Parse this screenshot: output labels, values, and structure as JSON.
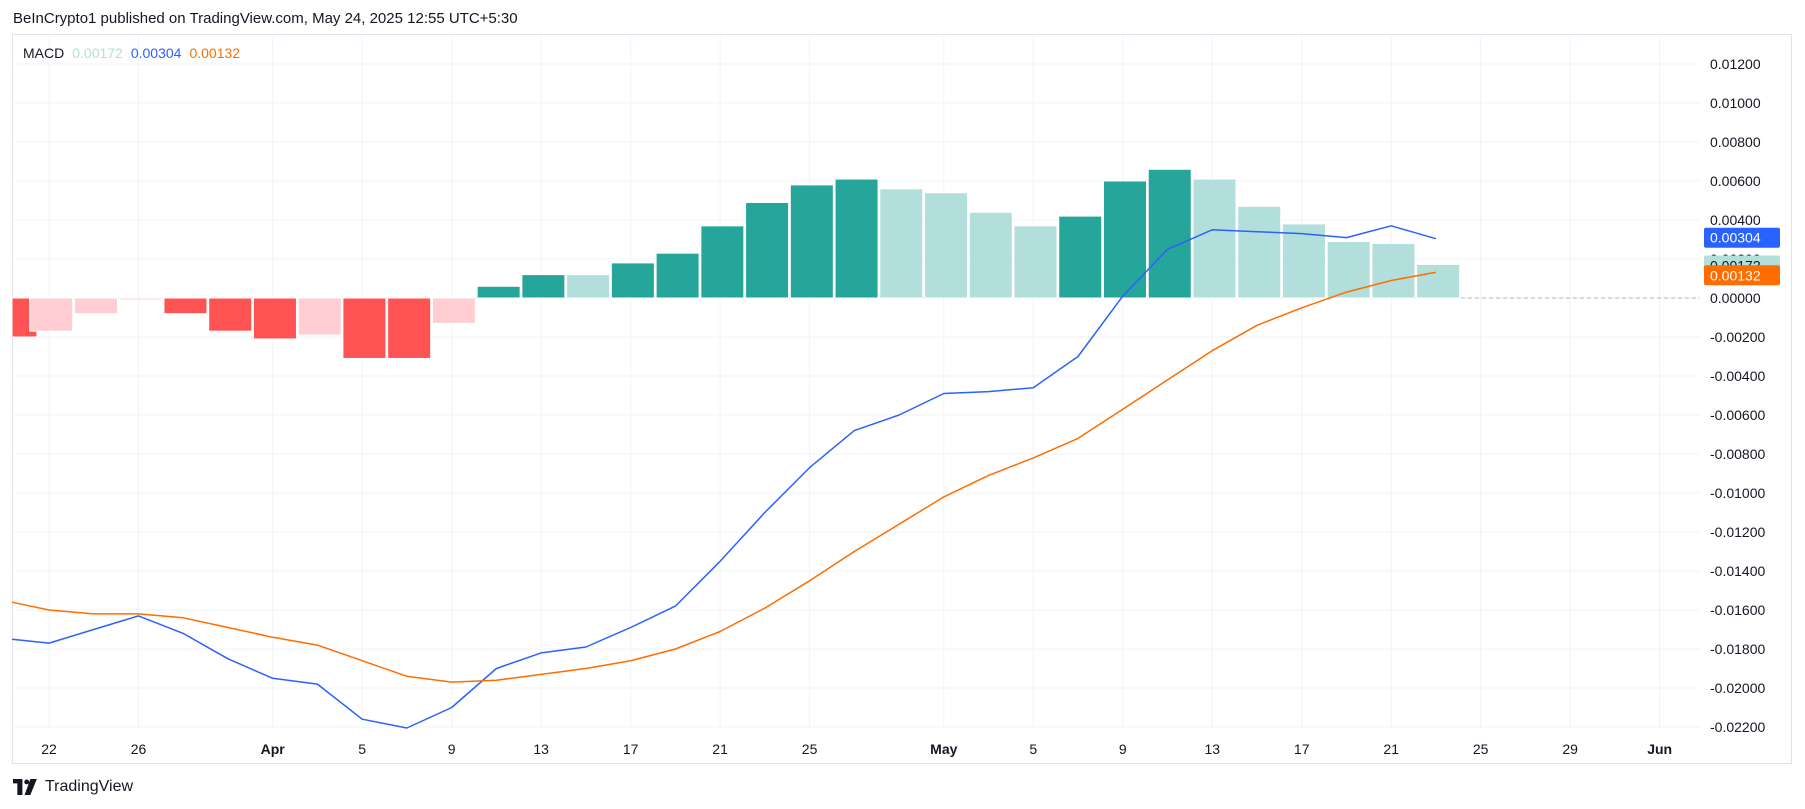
{
  "header": {
    "text": "BeInCrypto1 published on TradingView.com, May 24, 2025 12:55 UTC+5:30"
  },
  "legend": {
    "name": "MACD",
    "histogram_value": "0.00172",
    "macd_value": "0.00304",
    "signal_value": "0.00132"
  },
  "footer": {
    "brand": "TradingView",
    "icon": "tradingview-logo-icon"
  },
  "colors": {
    "hist_pos_strong": "#26a69a",
    "hist_pos_weak": "#b2dfdb",
    "hist_neg_strong": "#ff5252",
    "hist_neg_weak": "#ffcdd2",
    "macd_line": "#2962ff",
    "signal_line": "#ff6d00",
    "grid": "#f0f3fa",
    "axis_text": "#131722"
  },
  "chart_data": {
    "type": "bar",
    "title": "MACD",
    "grid": true,
    "ylim": [
      -0.022,
      0.0128
    ],
    "y_ticks": [
      "0.01200",
      "0.01000",
      "0.00800",
      "0.00600",
      "0.00400",
      "0.00200",
      "0.00000",
      "-0.00200",
      "-0.00400",
      "-0.00600",
      "-0.00800",
      "-0.01000",
      "-0.01200",
      "-0.01400",
      "-0.01600",
      "-0.01800",
      "-0.02000",
      "-0.02200"
    ],
    "x_ticks": [
      {
        "label": "22",
        "day": 1
      },
      {
        "label": "26",
        "day": 5
      },
      {
        "label": "Apr",
        "day": 11,
        "bold": true
      },
      {
        "label": "5",
        "day": 15
      },
      {
        "label": "9",
        "day": 19
      },
      {
        "label": "13",
        "day": 23
      },
      {
        "label": "17",
        "day": 27
      },
      {
        "label": "21",
        "day": 31
      },
      {
        "label": "25",
        "day": 35
      },
      {
        "label": "May",
        "day": 41,
        "bold": true
      },
      {
        "label": "5",
        "day": 45
      },
      {
        "label": "9",
        "day": 49
      },
      {
        "label": "13",
        "day": 53
      },
      {
        "label": "17",
        "day": 57
      },
      {
        "label": "21",
        "day": 61
      },
      {
        "label": "25",
        "day": 65
      },
      {
        "label": "29",
        "day": 69
      },
      {
        "label": "Jun",
        "day": 73,
        "bold": true
      }
    ],
    "histogram": [
      {
        "day": -0.5,
        "value": -0.002,
        "strength": "strong"
      },
      {
        "day": 1.1,
        "value": -0.0017,
        "strength": "weak"
      },
      {
        "day": 3.1,
        "value": -0.0008,
        "strength": "weak"
      },
      {
        "day": 5.1,
        "value": -0.0001,
        "strength": "weak"
      },
      {
        "day": 7.1,
        "value": -0.0008,
        "strength": "strong"
      },
      {
        "day": 9.1,
        "value": -0.0017,
        "strength": "strong"
      },
      {
        "day": 11.1,
        "value": -0.0021,
        "strength": "strong"
      },
      {
        "day": 13.1,
        "value": -0.0019,
        "strength": "weak"
      },
      {
        "day": 15.1,
        "value": -0.0031,
        "strength": "strong"
      },
      {
        "day": 17.1,
        "value": -0.0031,
        "strength": "strong"
      },
      {
        "day": 19.1,
        "value": -0.0013,
        "strength": "weak"
      },
      {
        "day": 21.1,
        "value": 0.0006,
        "strength": "strong"
      },
      {
        "day": 23.1,
        "value": 0.0012,
        "strength": "strong"
      },
      {
        "day": 25.1,
        "value": 0.0012,
        "strength": "weak"
      },
      {
        "day": 27.1,
        "value": 0.0018,
        "strength": "strong"
      },
      {
        "day": 29.1,
        "value": 0.0023,
        "strength": "strong"
      },
      {
        "day": 31.1,
        "value": 0.0037,
        "strength": "strong"
      },
      {
        "day": 33.1,
        "value": 0.0049,
        "strength": "strong"
      },
      {
        "day": 35.1,
        "value": 0.0058,
        "strength": "strong"
      },
      {
        "day": 37.1,
        "value": 0.0061,
        "strength": "strong"
      },
      {
        "day": 39.1,
        "value": 0.0056,
        "strength": "weak"
      },
      {
        "day": 41.1,
        "value": 0.0054,
        "strength": "weak"
      },
      {
        "day": 43.1,
        "value": 0.0044,
        "strength": "weak"
      },
      {
        "day": 45.1,
        "value": 0.0037,
        "strength": "weak"
      },
      {
        "day": 47.1,
        "value": 0.0042,
        "strength": "strong"
      },
      {
        "day": 49.1,
        "value": 0.006,
        "strength": "strong"
      },
      {
        "day": 51.1,
        "value": 0.0066,
        "strength": "strong"
      },
      {
        "day": 53.1,
        "value": 0.0061,
        "strength": "weak"
      },
      {
        "day": 55.1,
        "value": 0.0047,
        "strength": "weak"
      },
      {
        "day": 57.1,
        "value": 0.0038,
        "strength": "weak"
      },
      {
        "day": 59.1,
        "value": 0.0029,
        "strength": "weak"
      },
      {
        "day": 61.1,
        "value": 0.0028,
        "strength": "weak"
      },
      {
        "day": 63.1,
        "value": 0.00172,
        "strength": "weak"
      }
    ],
    "series": [
      {
        "name": "MACD",
        "points": [
          [
            -1,
            -0.0175
          ],
          [
            1,
            -0.0177
          ],
          [
            3,
            -0.017
          ],
          [
            5,
            -0.0163
          ],
          [
            7,
            -0.0172
          ],
          [
            9,
            -0.0185
          ],
          [
            11,
            -0.0195
          ],
          [
            13,
            -0.0198
          ],
          [
            15,
            -0.0216
          ],
          [
            17,
            -0.0224
          ],
          [
            19,
            -0.021
          ],
          [
            21,
            -0.019
          ],
          [
            23,
            -0.0182
          ],
          [
            25,
            -0.0179
          ],
          [
            27,
            -0.0169
          ],
          [
            29,
            -0.0158
          ],
          [
            31,
            -0.0135
          ],
          [
            33,
            -0.011
          ],
          [
            35,
            -0.0087
          ],
          [
            37,
            -0.0068
          ],
          [
            39,
            -0.006
          ],
          [
            41,
            -0.0049
          ],
          [
            43,
            -0.0048
          ],
          [
            45,
            -0.0046
          ],
          [
            47,
            -0.003
          ],
          [
            49,
            0.0001
          ],
          [
            51,
            0.0025
          ],
          [
            53,
            0.0035
          ],
          [
            55,
            0.0034
          ],
          [
            57,
            0.0033
          ],
          [
            59,
            0.0031
          ],
          [
            61,
            0.0037
          ],
          [
            63,
            0.00304
          ]
        ]
      },
      {
        "name": "Signal",
        "points": [
          [
            -1,
            -0.0156
          ],
          [
            1,
            -0.016
          ],
          [
            3,
            -0.0162
          ],
          [
            5,
            -0.0162
          ],
          [
            7,
            -0.0164
          ],
          [
            9,
            -0.0169
          ],
          [
            11,
            -0.0174
          ],
          [
            13,
            -0.0178
          ],
          [
            15,
            -0.0186
          ],
          [
            17,
            -0.0194
          ],
          [
            19,
            -0.0197
          ],
          [
            21,
            -0.0196
          ],
          [
            23,
            -0.0193
          ],
          [
            25,
            -0.019
          ],
          [
            27,
            -0.0186
          ],
          [
            29,
            -0.018
          ],
          [
            31,
            -0.0171
          ],
          [
            33,
            -0.0159
          ],
          [
            35,
            -0.0145
          ],
          [
            37,
            -0.013
          ],
          [
            39,
            -0.0116
          ],
          [
            41,
            -0.0102
          ],
          [
            43,
            -0.0091
          ],
          [
            45,
            -0.0082
          ],
          [
            47,
            -0.0072
          ],
          [
            49,
            -0.0057
          ],
          [
            51,
            -0.0042
          ],
          [
            53,
            -0.0027
          ],
          [
            55,
            -0.0014
          ],
          [
            57,
            -0.0005
          ],
          [
            59,
            0.0003
          ],
          [
            61,
            0.0009
          ],
          [
            63,
            0.00132
          ]
        ]
      }
    ],
    "last_value_tags": [
      {
        "label": "0.00304",
        "value": 0.00304,
        "color": "#2962ff"
      },
      {
        "label": "0.00172",
        "value": 0.00172,
        "color": "#b2dfdb"
      },
      {
        "label": "0.00132",
        "value": 0.00132,
        "color": "#ff6d00"
      }
    ]
  }
}
